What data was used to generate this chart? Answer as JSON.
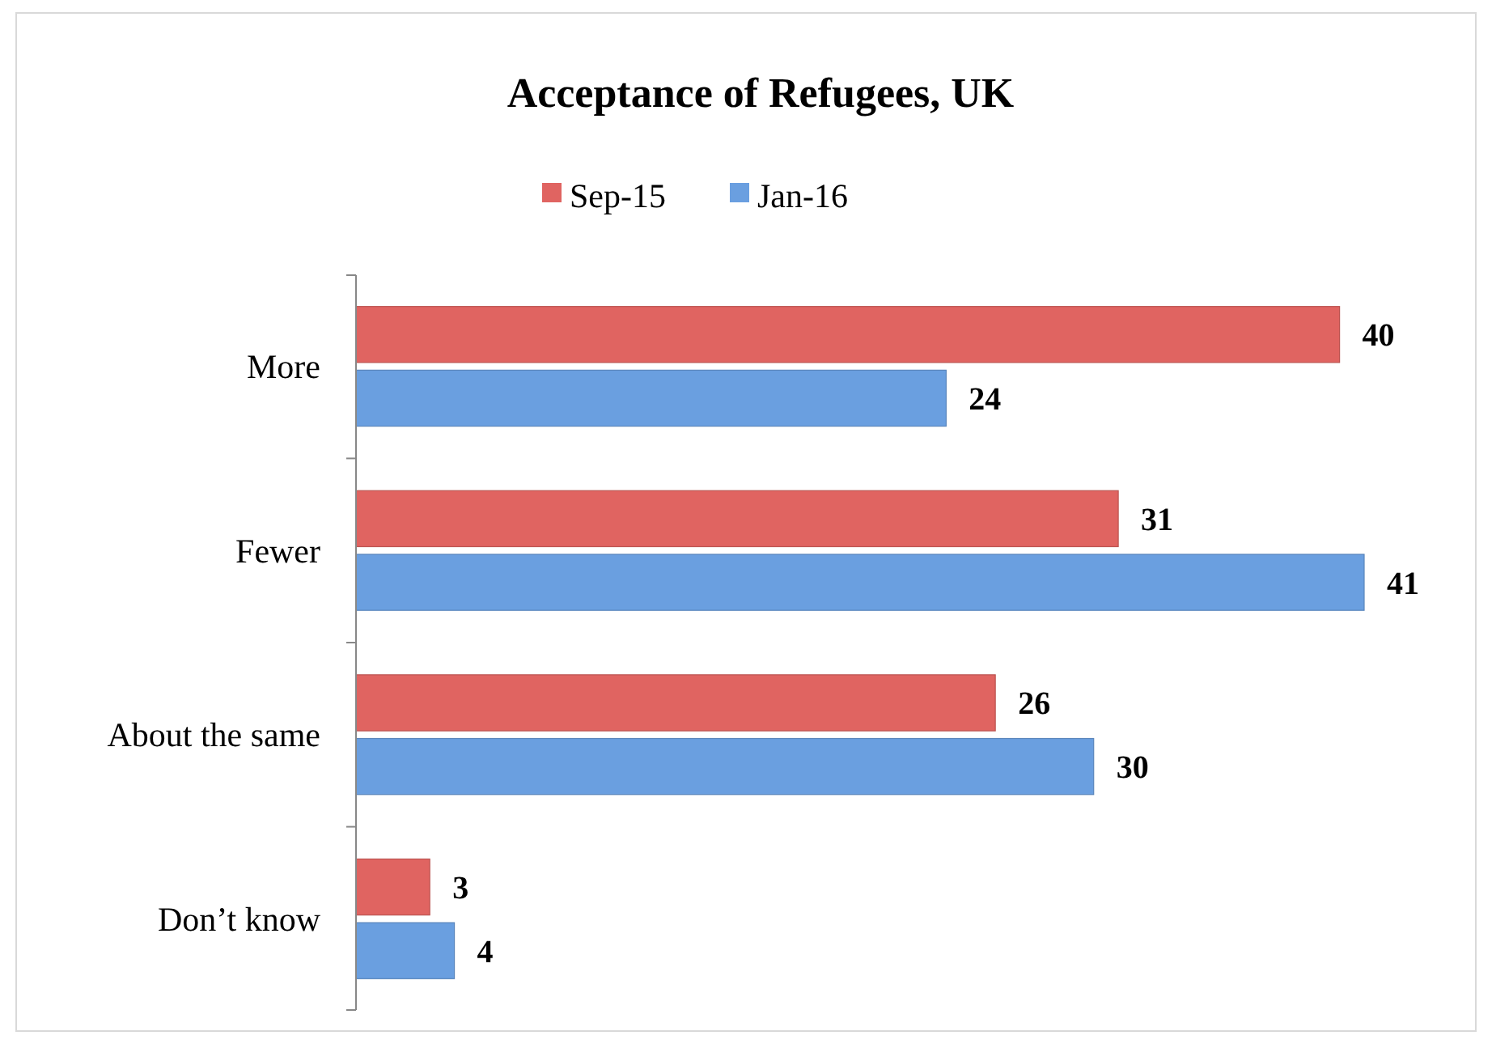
{
  "chart_data": {
    "type": "bar",
    "orientation": "horizontal",
    "title": "Acceptance of Refugees, UK",
    "categories": [
      "More",
      "Fewer",
      "About the same",
      "Don’t know"
    ],
    "series": [
      {
        "name": "Sep-15",
        "color": "#e06461",
        "values": [
          40,
          31,
          26,
          3
        ]
      },
      {
        "name": "Jan-16",
        "color": "#6a9fe0",
        "values": [
          24,
          41,
          30,
          4
        ]
      }
    ],
    "data_labels": true,
    "legend": "top"
  }
}
